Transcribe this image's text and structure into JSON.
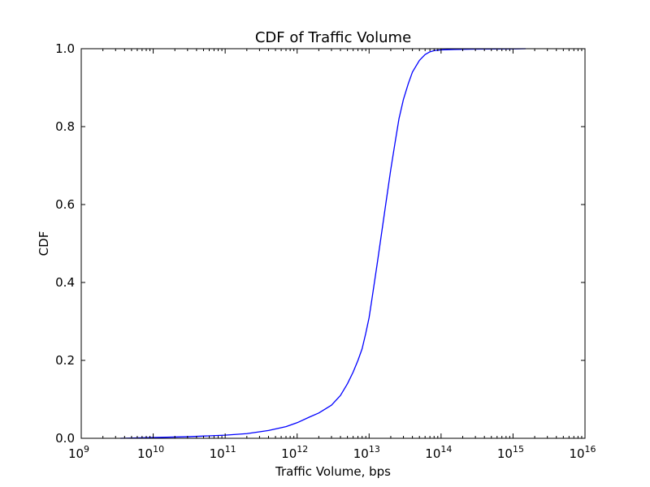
{
  "chart_data": {
    "type": "line",
    "title": "CDF of Traffic Volume",
    "xlabel": "Traffic Volume, bps",
    "ylabel": "CDF",
    "x_scale": "log",
    "xlim": [
      1000000000.0,
      1e+16
    ],
    "ylim": [
      0.0,
      1.0
    ],
    "x_ticks": [
      {
        "base": "10",
        "exp": "9",
        "value": 1000000000.0
      },
      {
        "base": "10",
        "exp": "10",
        "value": 10000000000.0
      },
      {
        "base": "10",
        "exp": "11",
        "value": 100000000000.0
      },
      {
        "base": "10",
        "exp": "12",
        "value": 1000000000000.0
      },
      {
        "base": "10",
        "exp": "13",
        "value": 10000000000000.0
      },
      {
        "base": "10",
        "exp": "14",
        "value": 100000000000000.0
      },
      {
        "base": "10",
        "exp": "15",
        "value": 1000000000000000.0
      },
      {
        "base": "10",
        "exp": "16",
        "value": 1e+16
      }
    ],
    "y_ticks": [
      "0.0",
      "0.2",
      "0.4",
      "0.6",
      "0.8",
      "1.0"
    ],
    "y_tick_values": [
      0.0,
      0.2,
      0.4,
      0.6,
      0.8,
      1.0
    ],
    "grid": false,
    "line_color": "#0000ff",
    "series": [
      {
        "x": [
          3500000000.0,
          10000000000.0,
          30000000000.0,
          100000000000.0,
          200000000000.0,
          400000000000.0,
          700000000000.0,
          1000000000000.0,
          1500000000000.0,
          2000000000000.0,
          3000000000000.0,
          4000000000000.0,
          5000000000000.0,
          6000000000000.0,
          7000000000000.0,
          8000000000000.0,
          9000000000000.0,
          10000000000000.0,
          11000000000000.0,
          13000000000000.0,
          15000000000000.0,
          17000000000000.0,
          20000000000000.0,
          23000000000000.0,
          26000000000000.0,
          30000000000000.0,
          35000000000000.0,
          40000000000000.0,
          50000000000000.0,
          60000000000000.0,
          70000000000000.0,
          80000000000000.0,
          100000000000000.0,
          150000000000000.0,
          300000000000000.0,
          1000000000000000.0,
          1500000000000000.0
        ],
        "y": [
          0.0,
          0.002,
          0.004,
          0.008,
          0.012,
          0.02,
          0.03,
          0.04,
          0.055,
          0.065,
          0.085,
          0.11,
          0.14,
          0.17,
          0.2,
          0.23,
          0.27,
          0.31,
          0.36,
          0.45,
          0.53,
          0.6,
          0.69,
          0.76,
          0.82,
          0.87,
          0.91,
          0.94,
          0.97,
          0.985,
          0.992,
          0.995,
          0.997,
          0.998,
          0.999,
          0.9995,
          1.0
        ]
      }
    ]
  }
}
